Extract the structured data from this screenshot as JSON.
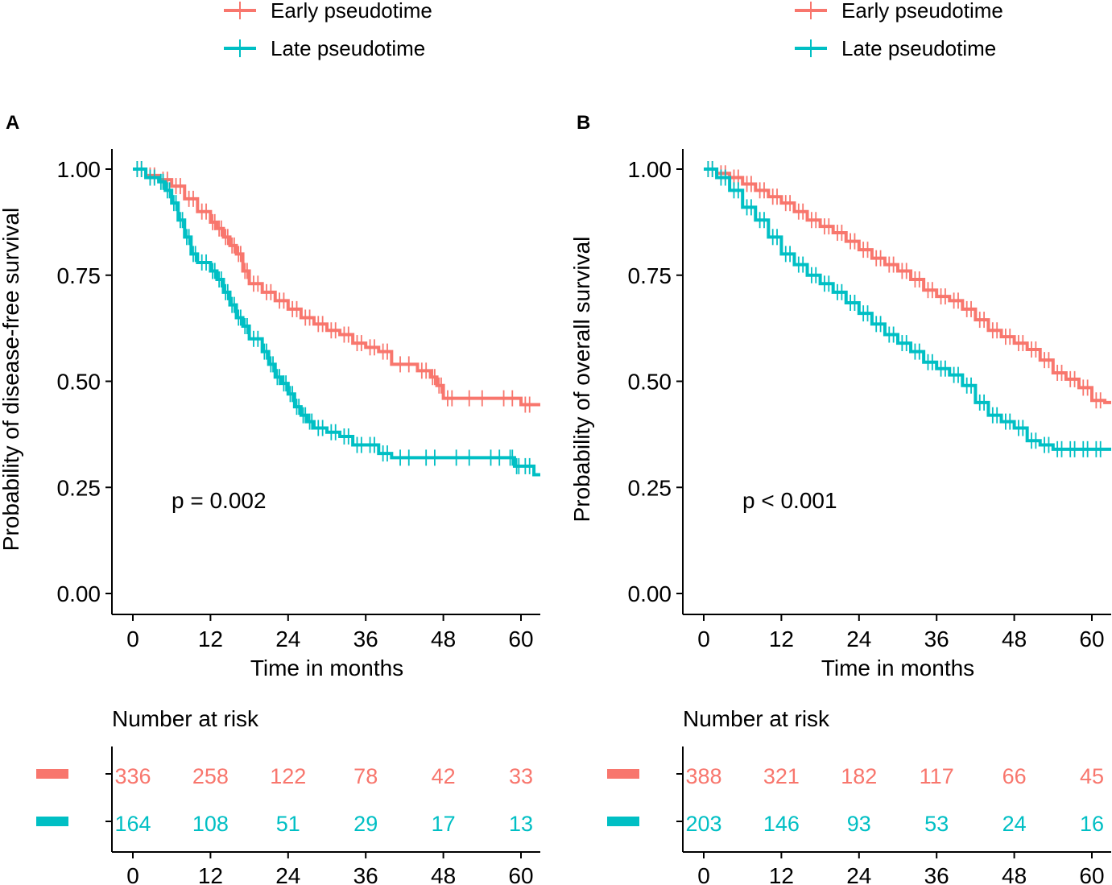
{
  "colors": {
    "early": "#F8766D",
    "late": "#00BFC4",
    "axis": "#000000"
  },
  "chart_data": [
    {
      "type": "line",
      "panel": "A",
      "legend": [
        "Early pseudotime",
        "Late pseudotime"
      ],
      "xlabel": "Time in months",
      "ylabel": "Probability of disease-free survival",
      "xticks": [
        0,
        12,
        24,
        36,
        48,
        60
      ],
      "yticks": [
        0.0,
        0.25,
        0.5,
        0.75,
        1.0
      ],
      "ytick_labels": [
        "0.00",
        "0.25",
        "0.50",
        "0.75",
        "1.00"
      ],
      "xlim": [
        -3,
        63
      ],
      "ylim": [
        -0.05,
        1.05
      ],
      "pvalue": "p = 0.002",
      "series": [
        {
          "name": "Early pseudotime",
          "x": [
            0,
            2,
            4,
            6,
            8,
            10,
            12,
            13,
            14,
            15,
            16,
            17,
            18,
            20,
            22,
            24,
            26,
            28,
            30,
            32,
            34,
            36,
            38,
            40,
            44,
            46,
            47,
            48,
            50,
            56,
            60,
            62
          ],
          "y": [
            1.0,
            0.985,
            0.975,
            0.96,
            0.93,
            0.9,
            0.875,
            0.86,
            0.84,
            0.82,
            0.8,
            0.76,
            0.73,
            0.71,
            0.69,
            0.67,
            0.65,
            0.635,
            0.62,
            0.61,
            0.59,
            0.58,
            0.57,
            0.54,
            0.525,
            0.51,
            0.49,
            0.46,
            0.46,
            0.46,
            0.445,
            0.445
          ]
        },
        {
          "name": "Late pseudotime",
          "x": [
            0,
            2,
            4,
            5,
            6,
            7,
            8,
            9,
            10,
            12,
            13,
            14,
            15,
            16,
            17,
            18,
            20,
            21,
            22,
            23,
            24,
            25,
            26,
            27,
            28,
            30,
            32,
            34,
            36,
            38,
            40,
            44,
            48,
            54,
            58,
            59,
            60,
            62
          ],
          "y": [
            1.0,
            0.98,
            0.97,
            0.95,
            0.92,
            0.88,
            0.84,
            0.8,
            0.78,
            0.76,
            0.74,
            0.71,
            0.68,
            0.65,
            0.63,
            0.6,
            0.57,
            0.54,
            0.51,
            0.495,
            0.47,
            0.44,
            0.42,
            0.405,
            0.39,
            0.38,
            0.37,
            0.35,
            0.35,
            0.33,
            0.32,
            0.32,
            0.32,
            0.32,
            0.32,
            0.3,
            0.3,
            0.28
          ]
        }
      ],
      "risk_table": {
        "title": "Number at risk",
        "times": [
          0,
          12,
          24,
          36,
          48,
          60
        ],
        "rows": [
          {
            "name": "Early pseudotime",
            "values": [
              "336",
              "258",
              "122",
              "78",
              "42",
              "33"
            ]
          },
          {
            "name": "Late pseudotime",
            "values": [
              "164",
              "108",
              "51",
              "29",
              "17",
              "13"
            ]
          }
        ]
      }
    },
    {
      "type": "line",
      "panel": "B",
      "legend": [
        "Early pseudotime",
        "Late pseudotime"
      ],
      "xlabel": "Time in months",
      "ylabel": "Probability of overall survival",
      "xticks": [
        0,
        12,
        24,
        36,
        48,
        60
      ],
      "yticks": [
        0.0,
        0.25,
        0.5,
        0.75,
        1.0
      ],
      "ytick_labels": [
        "0.00",
        "0.25",
        "0.50",
        "0.75",
        "1.00"
      ],
      "xlim": [
        -3,
        63
      ],
      "ylim": [
        -0.05,
        1.05
      ],
      "pvalue": "p < 0.001",
      "series": [
        {
          "name": "Early pseudotime",
          "x": [
            0,
            2,
            4,
            6,
            8,
            10,
            12,
            14,
            16,
            18,
            20,
            22,
            24,
            26,
            28,
            30,
            32,
            34,
            36,
            38,
            40,
            42,
            44,
            46,
            48,
            50,
            52,
            54,
            56,
            58,
            60,
            62
          ],
          "y": [
            1.0,
            0.99,
            0.98,
            0.965,
            0.95,
            0.935,
            0.92,
            0.9,
            0.88,
            0.865,
            0.85,
            0.83,
            0.81,
            0.79,
            0.775,
            0.76,
            0.74,
            0.715,
            0.7,
            0.69,
            0.67,
            0.645,
            0.62,
            0.605,
            0.59,
            0.575,
            0.55,
            0.52,
            0.505,
            0.485,
            0.455,
            0.45
          ]
        },
        {
          "name": "Late pseudotime",
          "x": [
            0,
            2,
            4,
            6,
            8,
            10,
            12,
            14,
            16,
            18,
            20,
            22,
            24,
            26,
            28,
            30,
            32,
            34,
            36,
            38,
            40,
            42,
            44,
            46,
            48,
            50,
            52,
            54,
            56,
            58,
            60,
            62
          ],
          "y": [
            1.0,
            0.98,
            0.95,
            0.91,
            0.88,
            0.84,
            0.8,
            0.775,
            0.75,
            0.73,
            0.71,
            0.685,
            0.66,
            0.635,
            0.61,
            0.59,
            0.57,
            0.545,
            0.53,
            0.515,
            0.49,
            0.45,
            0.42,
            0.405,
            0.39,
            0.36,
            0.35,
            0.34,
            0.34,
            0.34,
            0.34,
            0.34
          ]
        }
      ],
      "risk_table": {
        "title": "Number at risk",
        "times": [
          0,
          12,
          24,
          36,
          48,
          60
        ],
        "rows": [
          {
            "name": "Early pseudotime",
            "values": [
              "388",
              "321",
              "182",
              "117",
              "66",
              "45"
            ]
          },
          {
            "name": "Late pseudotime",
            "values": [
              "203",
              "146",
              "93",
              "53",
              "24",
              "16"
            ]
          }
        ]
      }
    }
  ]
}
